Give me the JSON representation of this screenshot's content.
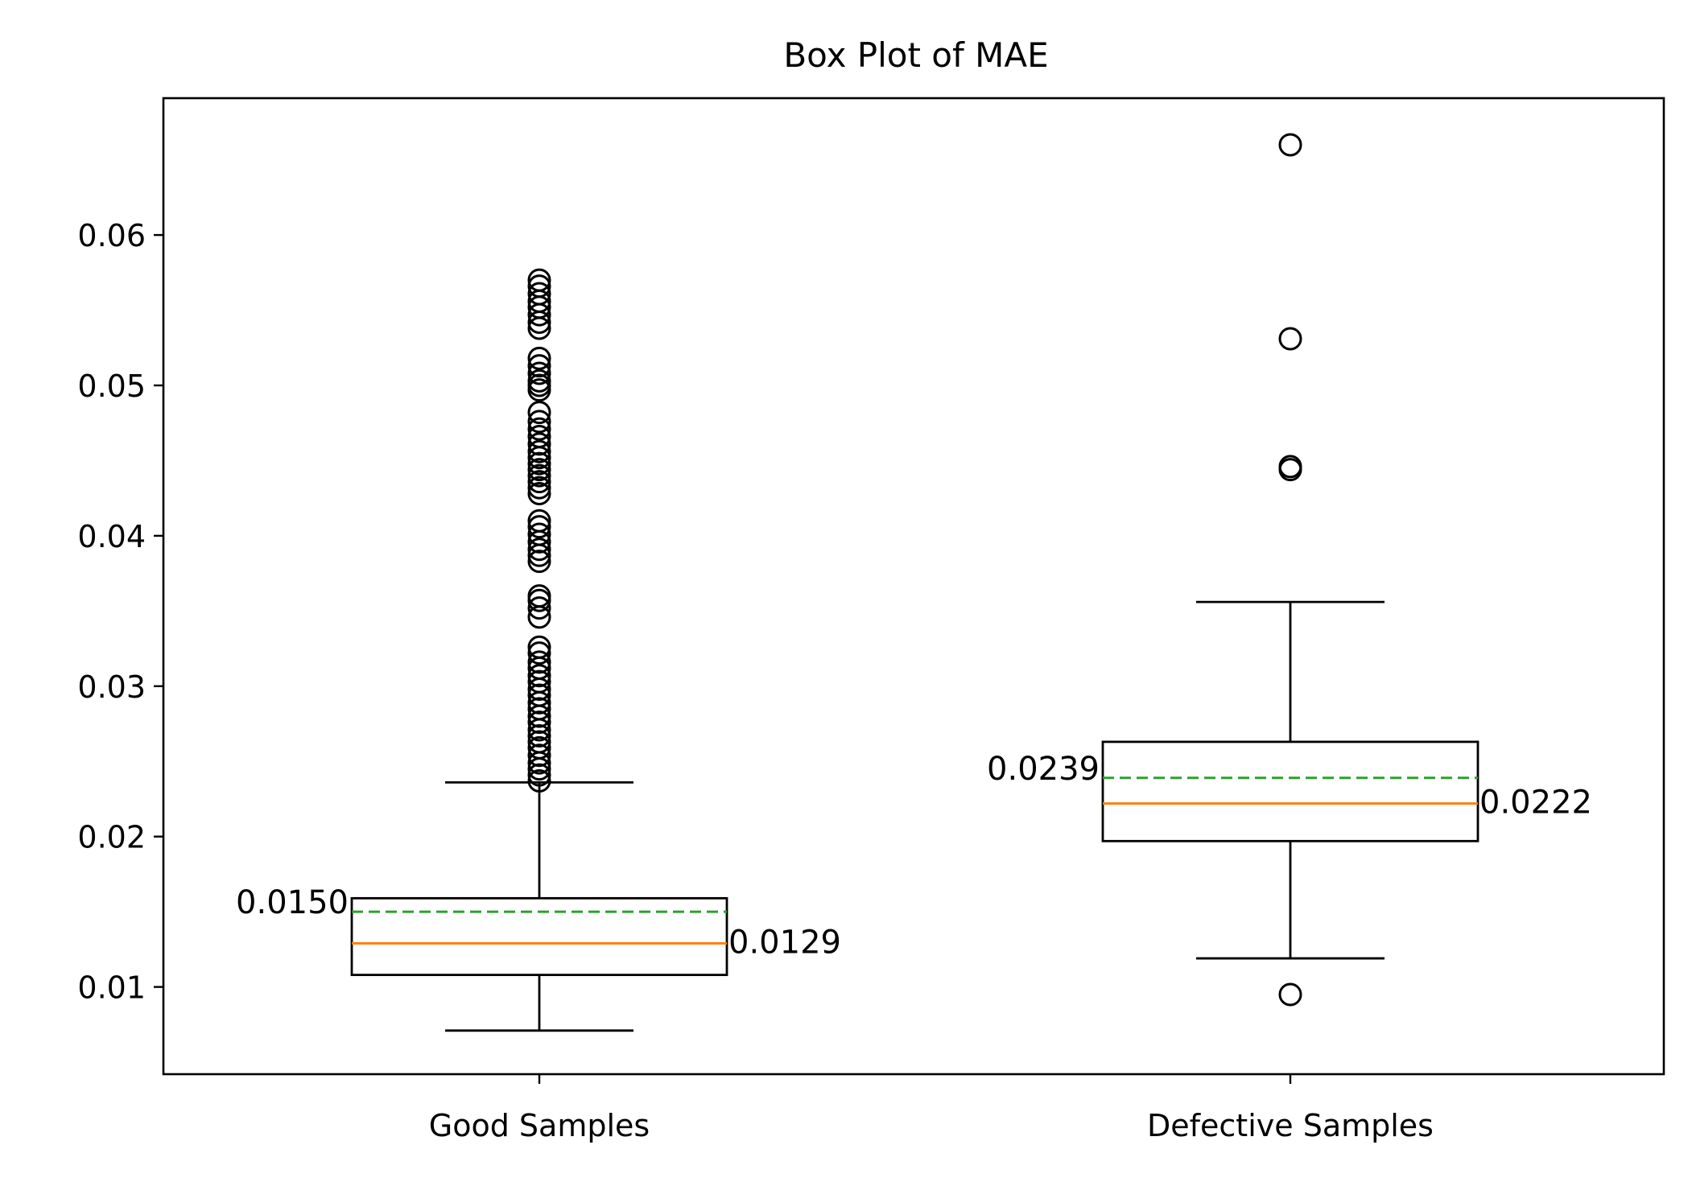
{
  "chart_data": {
    "type": "box",
    "title": "Box Plot of MAE",
    "xlabel": "",
    "ylabel": "",
    "ylim": [
      0.0042,
      0.0691
    ],
    "yticks": [
      0.01,
      0.02,
      0.03,
      0.04,
      0.05,
      0.06
    ],
    "ytick_labels": [
      "0.01",
      "0.02",
      "0.03",
      "0.04",
      "0.05",
      "0.06"
    ],
    "grid": false,
    "categories": [
      "Good Samples",
      "Defective Samples"
    ],
    "boxes": [
      {
        "name": "Good Samples",
        "whisker_low": 0.0071,
        "q1": 0.0108,
        "median": 0.0129,
        "q3": 0.0159,
        "whisker_high": 0.0236,
        "mean": 0.015,
        "median_label": "0.0129",
        "mean_label": "0.0150",
        "outliers": [
          0.0237,
          0.0241,
          0.0245,
          0.0249,
          0.0254,
          0.0259,
          0.0263,
          0.0267,
          0.0271,
          0.0276,
          0.028,
          0.0285,
          0.0289,
          0.0294,
          0.0298,
          0.0303,
          0.0307,
          0.0312,
          0.0316,
          0.0322,
          0.0326,
          0.0346,
          0.0352,
          0.0357,
          0.036,
          0.0383,
          0.0387,
          0.0391,
          0.0396,
          0.0401,
          0.0406,
          0.041,
          0.0428,
          0.0432,
          0.0436,
          0.044,
          0.0444,
          0.0448,
          0.0452,
          0.0456,
          0.0461,
          0.0466,
          0.0471,
          0.0476,
          0.0482,
          0.0497,
          0.05,
          0.0503,
          0.0508,
          0.0513,
          0.0518,
          0.0538,
          0.0542,
          0.0547,
          0.0552,
          0.0556,
          0.0561,
          0.0566,
          0.057
        ]
      },
      {
        "name": "Defective Samples",
        "whisker_low": 0.0119,
        "q1": 0.0197,
        "median": 0.0222,
        "q3": 0.0263,
        "whisker_high": 0.0356,
        "mean": 0.0239,
        "median_label": "0.0222",
        "mean_label": "0.0239",
        "outliers": [
          0.0095,
          0.0444,
          0.0446,
          0.0531,
          0.066
        ]
      }
    ],
    "colors": {
      "box": "#000000",
      "median": "#ff7f0e",
      "mean": "#2ca02c",
      "background": "#ffffff"
    }
  }
}
